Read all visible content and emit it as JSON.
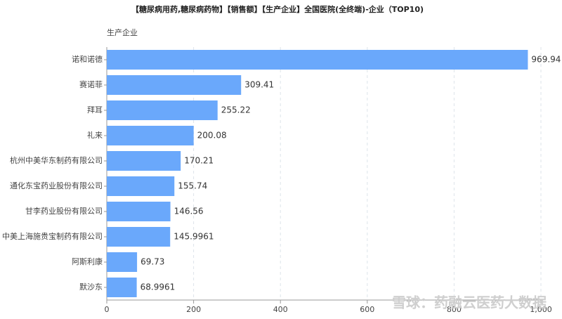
{
  "chart_data": {
    "type": "bar",
    "orientation": "horizontal",
    "title": "【糖尿病用药,糖尿病药物】【销售额】【生产企业】全国医院(全终端)-企业（TOP10)",
    "y_label": "生产企业",
    "watermark": "雪球：药融云医药大数据",
    "categories": [
      "诺和诺德",
      "赛诺菲",
      "拜耳",
      "礼来",
      "杭州中美华东制药有限公司",
      "通化东宝药业股份有限公司",
      "甘李药业股份有限公司",
      "中美上海施贵宝制药有限公司",
      "阿斯利康",
      "默沙东"
    ],
    "values": [
      969.94,
      309.41,
      255.22,
      200.08,
      170.21,
      155.74,
      146.56,
      145.9961,
      69.73,
      68.9961
    ],
    "color": "#6aa8fb",
    "xlim": [
      0,
      1000
    ],
    "xticks": [
      0,
      200,
      400,
      600,
      800,
      {
        "value": 1000,
        "label": "1,000"
      }
    ],
    "grid": true
  }
}
